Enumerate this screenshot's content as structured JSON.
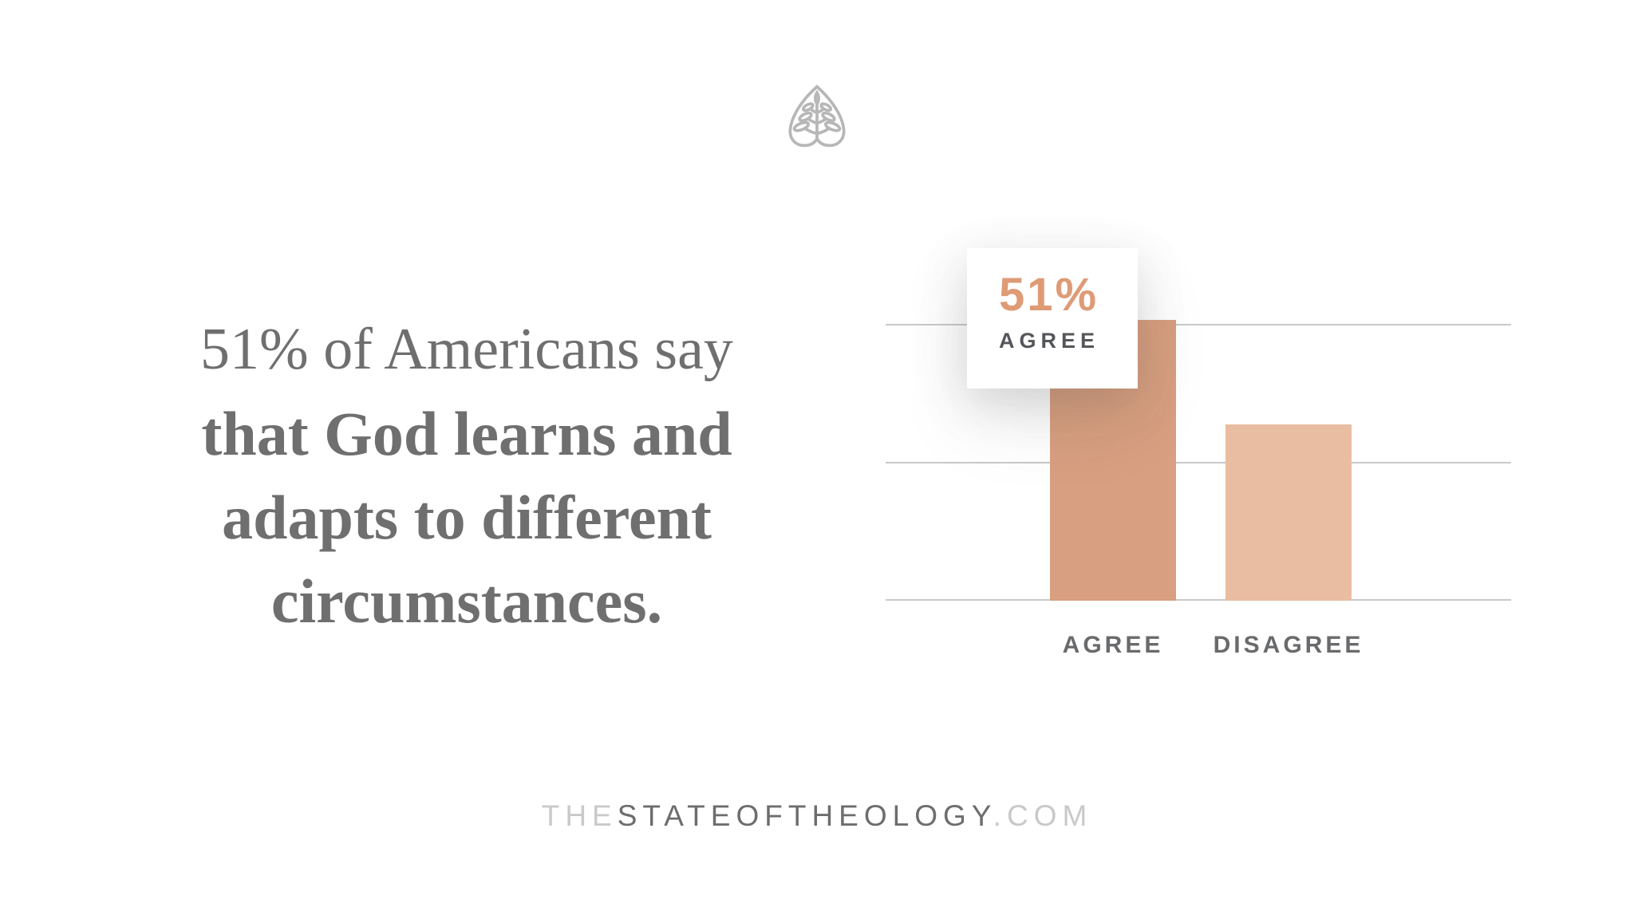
{
  "colors": {
    "background": "#FFFFFF",
    "headline": "#6F6F6F",
    "axis_label": "#696A6C",
    "gridline": "#C9C9C9",
    "callout_value": "#DE9B76",
    "callout_label": "#55565A",
    "footer_muted": "#C9C9C9",
    "footer_dark": "#6D6D6D",
    "logo": "#B7B7B7"
  },
  "logo": {
    "name": "ligonier-tree-logo"
  },
  "statement": {
    "lines": [
      "51% of Americans say",
      "that God learns and",
      "adapts to different",
      "circumstances."
    ]
  },
  "chart_data": {
    "type": "bar",
    "categories": [
      "AGREE",
      "DISAGREE"
    ],
    "values": [
      51,
      32
    ],
    "unit": "%",
    "bar_colors": [
      "#D89F80",
      "#E9BDA2"
    ],
    "title": "",
    "xlabel": "",
    "ylabel": "",
    "ylim": [
      0,
      55
    ],
    "gridline_values": [
      0,
      25,
      50
    ],
    "grid": true,
    "legend": "none",
    "callout": {
      "value": "51%",
      "label": "AGREE",
      "attached_to": "AGREE"
    }
  },
  "footer": {
    "the": "THE",
    "main": "STATEOFTHEOLOGY",
    "com": ".COM"
  }
}
